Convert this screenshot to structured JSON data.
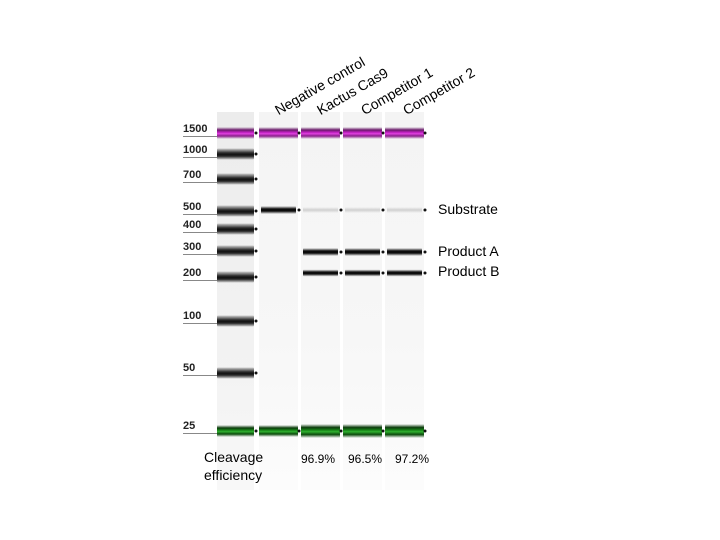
{
  "ladder": {
    "sizes": [
      "1500",
      "1000",
      "700",
      "500",
      "400",
      "300",
      "200",
      "100",
      "50",
      "25"
    ]
  },
  "lanes": {
    "negative_control": "Negative control",
    "kactus_cas9": "Kactus Cas9",
    "competitor_1": "Competitor 1",
    "competitor_2": "Competitor 2"
  },
  "band_labels": {
    "substrate": "Substrate",
    "product_a": "Product A",
    "product_b": "Product B"
  },
  "cleavage": {
    "caption_line1": "Cleavage",
    "caption_line2": "efficiency",
    "kactus_cas9": "96.9%",
    "competitor_1": "96.5%",
    "competitor_2": "97.2%"
  },
  "colors": {
    "upper_marker": "#c020c0",
    "lower_marker": "#1a8a1a"
  }
}
